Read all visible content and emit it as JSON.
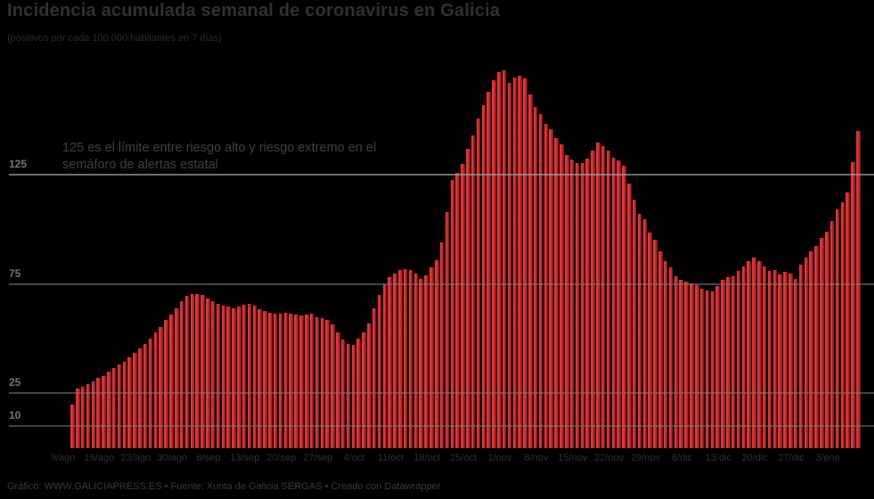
{
  "header": {
    "title": "Incidencia acumulada semanal de coronavirus en Galicia",
    "subtitle": "(positivos por cada 100.000 habitantes en 7 días)"
  },
  "annotation": {
    "line1": "125 es el límite entre riesgo alto y riesgo extremo en el",
    "line2": "semáforo de alertas estatal"
  },
  "footer": {
    "credit": "Gráfico: WWW.GALICIAPRESS.ES • Fuente: Xunta de Galicia SERGAS • Creado con Datawrapper"
  },
  "colors": {
    "background": "#000000",
    "bar": "#c92626",
    "bar_highlight": "#e04545",
    "bar_shadow": "#7a1111",
    "gridline": "#7a7a7a",
    "threshold_line": "#9e9e9e",
    "title_text": "#303030",
    "y_axis_text": "#757575",
    "x_axis_text": "#2f2f2f",
    "annotation_text": "#3f3f3f",
    "footer_text": "#3a3a3a"
  },
  "chart_data": {
    "type": "bar",
    "title": "Incidencia acumulada semanal de coronavirus en Galicia",
    "subtitle": "(positivos por cada 100.000 habitantes en 7 días)",
    "ylabel": "positivos por cada 100.000 habitantes en 7 días",
    "xlabel": "",
    "grid": "horizontal",
    "legend": "none",
    "ylim": [
      0,
      180
    ],
    "y_ticks": [
      10,
      25,
      75,
      125
    ],
    "threshold_value": 125,
    "threshold_note": "125 es el límite entre riesgo alto y riesgo extremo en el semáforo de alertas estatal",
    "x_tick_labels": [
      "9/ago",
      "16/ago",
      "23/ago",
      "30/ago",
      "6/sep",
      "13/sep",
      "20/sep",
      "27/sep",
      "4/oct",
      "11/oct",
      "18/oct",
      "25/oct",
      "1/nov",
      "8/nov",
      "15/nov",
      "22/nov",
      "29/nov",
      "6/dic",
      "13/dic",
      "20/dic",
      "27/dic",
      "3/ene"
    ],
    "x_tick_every_n_bars": 7,
    "bars_are_daily": true,
    "values": [
      20,
      27,
      28,
      29,
      30.5,
      32,
      33,
      35,
      36.5,
      38,
      39.5,
      41.5,
      43.5,
      45.5,
      47.5,
      50,
      53,
      55.5,
      58.5,
      61,
      64,
      67,
      69.5,
      70.5,
      70.5,
      70,
      68.5,
      67,
      66,
      65,
      64.5,
      64,
      64.5,
      65.5,
      66,
      65,
      63.5,
      62.5,
      62,
      61.5,
      61.5,
      62,
      61.5,
      61,
      60.5,
      61,
      61.5,
      60,
      59.5,
      58.5,
      56.5,
      53,
      49.5,
      47.5,
      47,
      50,
      53,
      57,
      64,
      70,
      75,
      78,
      80,
      81.5,
      82,
      81.5,
      80,
      77.5,
      79,
      82.5,
      86,
      94,
      108,
      122.5,
      126,
      130,
      137,
      143,
      151,
      157,
      163,
      168.5,
      172,
      173,
      167,
      169.5,
      170.5,
      169,
      162,
      156,
      153,
      148.5,
      146,
      142,
      139,
      134,
      132,
      130.5,
      130.5,
      132.5,
      136,
      140,
      138,
      136,
      133,
      131.5,
      129,
      121,
      113.5,
      107,
      104.5,
      98.5,
      95.5,
      90,
      85.5,
      82.5,
      78.5,
      77,
      76,
      75.5,
      74.5,
      73,
      72,
      71.5,
      74,
      77,
      78,
      78.5,
      81,
      83,
      85.5,
      87,
      85.5,
      83,
      81,
      81.5,
      79.5,
      80.5,
      80,
      77.5,
      84,
      87,
      90,
      92.5,
      96,
      99,
      104,
      109,
      112.5,
      117,
      131,
      145
    ]
  }
}
